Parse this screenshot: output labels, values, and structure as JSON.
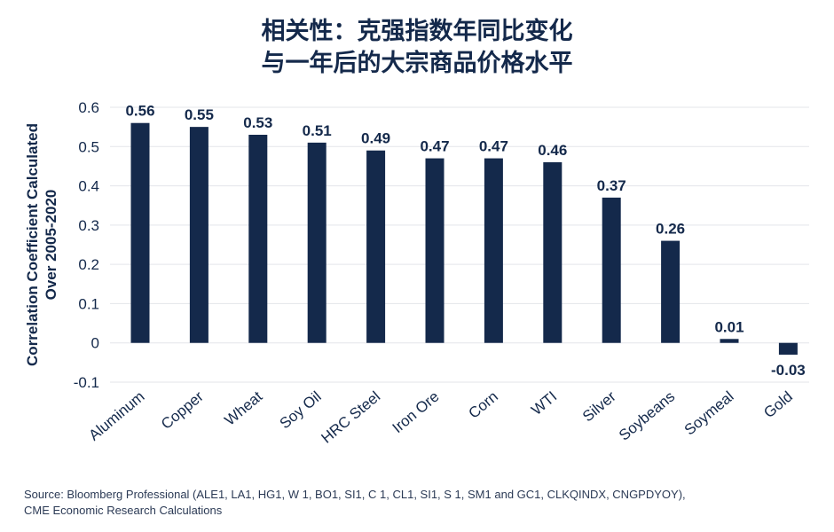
{
  "chart_data": {
    "type": "bar",
    "title_lines": [
      "相关性：克强指数年同比变化",
      "与一年后的大宗商品价格水平"
    ],
    "ylabel_lines": [
      "Correlation Coefficient Calculated",
      "Over 2005-2020"
    ],
    "xlabel": "",
    "categories": [
      "Aluminum",
      "Copper",
      "Wheat",
      "Soy Oil",
      "HRC Steel",
      "Iron Ore",
      "Corn",
      "WTI",
      "Silver",
      "Soybeans",
      "Soymeal",
      "Gold"
    ],
    "values": [
      0.56,
      0.55,
      0.53,
      0.51,
      0.49,
      0.47,
      0.47,
      0.46,
      0.37,
      0.26,
      0.01,
      -0.03
    ],
    "value_labels": [
      "0.56",
      "0.55",
      "0.53",
      "0.51",
      "0.49",
      "0.47",
      "0.47",
      "0.46",
      "0.37",
      "0.26",
      "0.01",
      "-0.03"
    ],
    "yticks": [
      -0.1,
      0,
      0.1,
      0.2,
      0.3,
      0.4,
      0.5,
      0.6
    ],
    "ytick_labels": [
      "-0.1",
      "0",
      "0.1",
      "0.2",
      "0.3",
      "0.4",
      "0.5",
      "0.6"
    ],
    "ylim": [
      -0.1,
      0.6
    ],
    "grid": true,
    "bar_color": "#14294b",
    "grid_color": "#e3e5ea"
  },
  "source_lines": [
    "Source: Bloomberg Professional (ALE1, LA1, HG1, W 1, BO1, SI1, C 1, CL1, SI1, S 1, SM1 and GC1, CLKQINDX, CNGPDYOY),",
    "CME Economic Research Calculations"
  ]
}
